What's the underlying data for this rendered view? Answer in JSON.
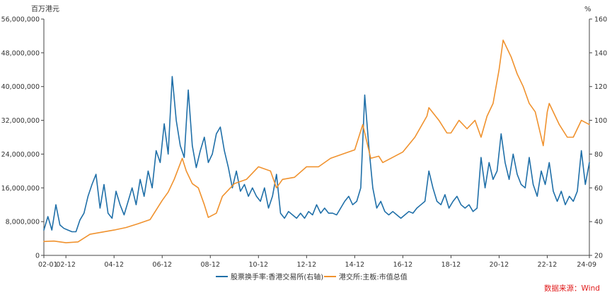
{
  "chart_data": {
    "type": "line",
    "left_axis": {
      "unit": "百万港元",
      "range": [
        0,
        56000000
      ],
      "ticks": [
        "0",
        "8,000,000",
        "16,000,000",
        "24,000,000",
        "32,000,000",
        "40,000,000",
        "48,000,000",
        "56,000,000"
      ]
    },
    "right_axis": {
      "unit": "%",
      "range": [
        20,
        160
      ],
      "ticks": [
        "20",
        "40",
        "60",
        "80",
        "100",
        "120",
        "140",
        "160"
      ]
    },
    "x_axis": {
      "range": [
        "2002-01",
        "2024-09"
      ],
      "ticks": [
        {
          "label": "02-01",
          "date": "2002-01"
        },
        {
          "label": "02-12",
          "date": "2002-12"
        },
        {
          "label": "04-12",
          "date": "2004-12"
        },
        {
          "label": "06-12",
          "date": "2006-12"
        },
        {
          "label": "08-12",
          "date": "2008-12"
        },
        {
          "label": "10-12",
          "date": "2010-12"
        },
        {
          "label": "12-12",
          "date": "2012-12"
        },
        {
          "label": "14-12",
          "date": "2014-12"
        },
        {
          "label": "16-12",
          "date": "2016-12"
        },
        {
          "label": "18-12",
          "date": "2018-12"
        },
        {
          "label": "20-12",
          "date": "2020-12"
        },
        {
          "label": "22-12",
          "date": "2022-12"
        },
        {
          "label": "24-09",
          "date": "2024-09"
        }
      ]
    },
    "grid": false,
    "legend_position": "bottom",
    "series": [
      {
        "name": "股票换手率:香港交易所(右轴)",
        "axis": "right",
        "color": "#1f6fa8",
        "points": [
          [
            "2002-01",
            35
          ],
          [
            "2002-03",
            43
          ],
          [
            "2002-05",
            35
          ],
          [
            "2002-07",
            50
          ],
          [
            "2002-09",
            38
          ],
          [
            "2002-11",
            36
          ],
          [
            "2003-01",
            35
          ],
          [
            "2003-03",
            34
          ],
          [
            "2003-05",
            34
          ],
          [
            "2003-07",
            41
          ],
          [
            "2003-09",
            45
          ],
          [
            "2003-11",
            55
          ],
          [
            "2004-01",
            62
          ],
          [
            "2004-03",
            68
          ],
          [
            "2004-05",
            48
          ],
          [
            "2004-07",
            62
          ],
          [
            "2004-09",
            45
          ],
          [
            "2004-11",
            42
          ],
          [
            "2005-01",
            58
          ],
          [
            "2005-03",
            50
          ],
          [
            "2005-05",
            44
          ],
          [
            "2005-07",
            52
          ],
          [
            "2005-09",
            60
          ],
          [
            "2005-11",
            50
          ],
          [
            "2006-01",
            65
          ],
          [
            "2006-03",
            55
          ],
          [
            "2006-05",
            70
          ],
          [
            "2006-07",
            60
          ],
          [
            "2006-09",
            82
          ],
          [
            "2006-11",
            75
          ],
          [
            "2007-01",
            98
          ],
          [
            "2007-03",
            80
          ],
          [
            "2007-05",
            126
          ],
          [
            "2007-07",
            100
          ],
          [
            "2007-09",
            85
          ],
          [
            "2007-11",
            78
          ],
          [
            "2008-01",
            118
          ],
          [
            "2008-03",
            85
          ],
          [
            "2008-05",
            72
          ],
          [
            "2008-07",
            82
          ],
          [
            "2008-09",
            90
          ],
          [
            "2008-11",
            75
          ],
          [
            "2009-01",
            80
          ],
          [
            "2009-03",
            92
          ],
          [
            "2009-05",
            96
          ],
          [
            "2009-07",
            82
          ],
          [
            "2009-09",
            72
          ],
          [
            "2009-11",
            60
          ],
          [
            "2010-01",
            70
          ],
          [
            "2010-03",
            58
          ],
          [
            "2010-05",
            62
          ],
          [
            "2010-07",
            55
          ],
          [
            "2010-09",
            60
          ],
          [
            "2010-11",
            55
          ],
          [
            "2011-01",
            52
          ],
          [
            "2011-03",
            60
          ],
          [
            "2011-05",
            48
          ],
          [
            "2011-07",
            55
          ],
          [
            "2011-09",
            68
          ],
          [
            "2011-11",
            45
          ],
          [
            "2012-01",
            42
          ],
          [
            "2012-03",
            46
          ],
          [
            "2012-05",
            44
          ],
          [
            "2012-07",
            42
          ],
          [
            "2012-09",
            45
          ],
          [
            "2012-11",
            42
          ],
          [
            "2013-01",
            46
          ],
          [
            "2013-03",
            44
          ],
          [
            "2013-05",
            50
          ],
          [
            "2013-07",
            45
          ],
          [
            "2013-09",
            48
          ],
          [
            "2013-11",
            45
          ],
          [
            "2014-01",
            45
          ],
          [
            "2014-03",
            44
          ],
          [
            "2014-05",
            48
          ],
          [
            "2014-07",
            52
          ],
          [
            "2014-09",
            55
          ],
          [
            "2014-11",
            50
          ],
          [
            "2015-01",
            52
          ],
          [
            "2015-03",
            60
          ],
          [
            "2015-05",
            115
          ],
          [
            "2015-07",
            85
          ],
          [
            "2015-09",
            60
          ],
          [
            "2015-11",
            48
          ],
          [
            "2016-01",
            52
          ],
          [
            "2016-03",
            46
          ],
          [
            "2016-05",
            44
          ],
          [
            "2016-07",
            46
          ],
          [
            "2016-09",
            44
          ],
          [
            "2016-11",
            42
          ],
          [
            "2017-01",
            44
          ],
          [
            "2017-03",
            46
          ],
          [
            "2017-05",
            45
          ],
          [
            "2017-07",
            48
          ],
          [
            "2017-09",
            50
          ],
          [
            "2017-11",
            52
          ],
          [
            "2018-01",
            70
          ],
          [
            "2018-03",
            60
          ],
          [
            "2018-05",
            52
          ],
          [
            "2018-07",
            50
          ],
          [
            "2018-09",
            56
          ],
          [
            "2018-11",
            48
          ],
          [
            "2019-01",
            52
          ],
          [
            "2019-03",
            55
          ],
          [
            "2019-05",
            50
          ],
          [
            "2019-07",
            48
          ],
          [
            "2019-09",
            50
          ],
          [
            "2019-11",
            46
          ],
          [
            "2020-01",
            48
          ],
          [
            "2020-03",
            78
          ],
          [
            "2020-05",
            60
          ],
          [
            "2020-07",
            75
          ],
          [
            "2020-09",
            65
          ],
          [
            "2020-11",
            70
          ],
          [
            "2021-01",
            92
          ],
          [
            "2021-03",
            75
          ],
          [
            "2021-05",
            65
          ],
          [
            "2021-07",
            80
          ],
          [
            "2021-09",
            68
          ],
          [
            "2021-11",
            62
          ],
          [
            "2022-01",
            60
          ],
          [
            "2022-03",
            78
          ],
          [
            "2022-05",
            62
          ],
          [
            "2022-07",
            55
          ],
          [
            "2022-09",
            70
          ],
          [
            "2022-11",
            62
          ],
          [
            "2023-01",
            75
          ],
          [
            "2023-03",
            58
          ],
          [
            "2023-05",
            52
          ],
          [
            "2023-07",
            58
          ],
          [
            "2023-09",
            50
          ],
          [
            "2023-11",
            55
          ],
          [
            "2024-01",
            52
          ],
          [
            "2024-03",
            58
          ],
          [
            "2024-05",
            82
          ],
          [
            "2024-07",
            62
          ],
          [
            "2024-09",
            75
          ]
        ]
      },
      {
        "name": "港交所:主板:市值总值",
        "axis": "left",
        "color": "#f0922e",
        "points": [
          [
            "2002-01",
            3300000
          ],
          [
            "2002-06",
            3400000
          ],
          [
            "2002-12",
            3000000
          ],
          [
            "2003-06",
            3200000
          ],
          [
            "2003-12",
            5000000
          ],
          [
            "2004-06",
            5500000
          ],
          [
            "2004-12",
            6000000
          ],
          [
            "2005-06",
            6600000
          ],
          [
            "2005-12",
            7500000
          ],
          [
            "2006-06",
            8500000
          ],
          [
            "2006-12",
            13000000
          ],
          [
            "2007-03",
            15000000
          ],
          [
            "2007-06",
            18000000
          ],
          [
            "2007-10",
            23000000
          ],
          [
            "2007-12",
            20000000
          ],
          [
            "2008-03",
            17000000
          ],
          [
            "2008-06",
            16000000
          ],
          [
            "2008-09",
            12000000
          ],
          [
            "2008-11",
            9000000
          ],
          [
            "2009-03",
            10000000
          ],
          [
            "2009-06",
            14000000
          ],
          [
            "2009-12",
            17000000
          ],
          [
            "2010-06",
            18000000
          ],
          [
            "2010-12",
            21000000
          ],
          [
            "2011-06",
            20000000
          ],
          [
            "2011-09",
            16000000
          ],
          [
            "2011-12",
            18000000
          ],
          [
            "2012-06",
            18500000
          ],
          [
            "2012-12",
            21000000
          ],
          [
            "2013-06",
            21000000
          ],
          [
            "2013-12",
            23000000
          ],
          [
            "2014-06",
            24000000
          ],
          [
            "2014-12",
            25000000
          ],
          [
            "2015-04",
            31000000
          ],
          [
            "2015-08",
            23000000
          ],
          [
            "2015-12",
            23500000
          ],
          [
            "2016-02",
            22000000
          ],
          [
            "2016-06",
            23000000
          ],
          [
            "2016-12",
            24500000
          ],
          [
            "2017-06",
            28000000
          ],
          [
            "2017-12",
            33000000
          ],
          [
            "2018-01",
            35000000
          ],
          [
            "2018-06",
            32000000
          ],
          [
            "2018-10",
            29000000
          ],
          [
            "2018-12",
            29000000
          ],
          [
            "2019-04",
            32000000
          ],
          [
            "2019-08",
            30000000
          ],
          [
            "2019-12",
            32000000
          ],
          [
            "2020-03",
            28000000
          ],
          [
            "2020-06",
            33000000
          ],
          [
            "2020-09",
            36000000
          ],
          [
            "2020-12",
            44000000
          ],
          [
            "2021-02",
            51000000
          ],
          [
            "2021-06",
            47000000
          ],
          [
            "2021-09",
            43000000
          ],
          [
            "2021-12",
            40000000
          ],
          [
            "2022-03",
            36000000
          ],
          [
            "2022-06",
            34000000
          ],
          [
            "2022-10",
            26000000
          ],
          [
            "2022-12",
            34000000
          ],
          [
            "2023-01",
            36000000
          ],
          [
            "2023-06",
            31000000
          ],
          [
            "2023-10",
            28000000
          ],
          [
            "2024-01",
            28000000
          ],
          [
            "2024-05",
            32000000
          ],
          [
            "2024-09",
            31000000
          ]
        ]
      }
    ],
    "annotation": "数据来源：Wind"
  }
}
